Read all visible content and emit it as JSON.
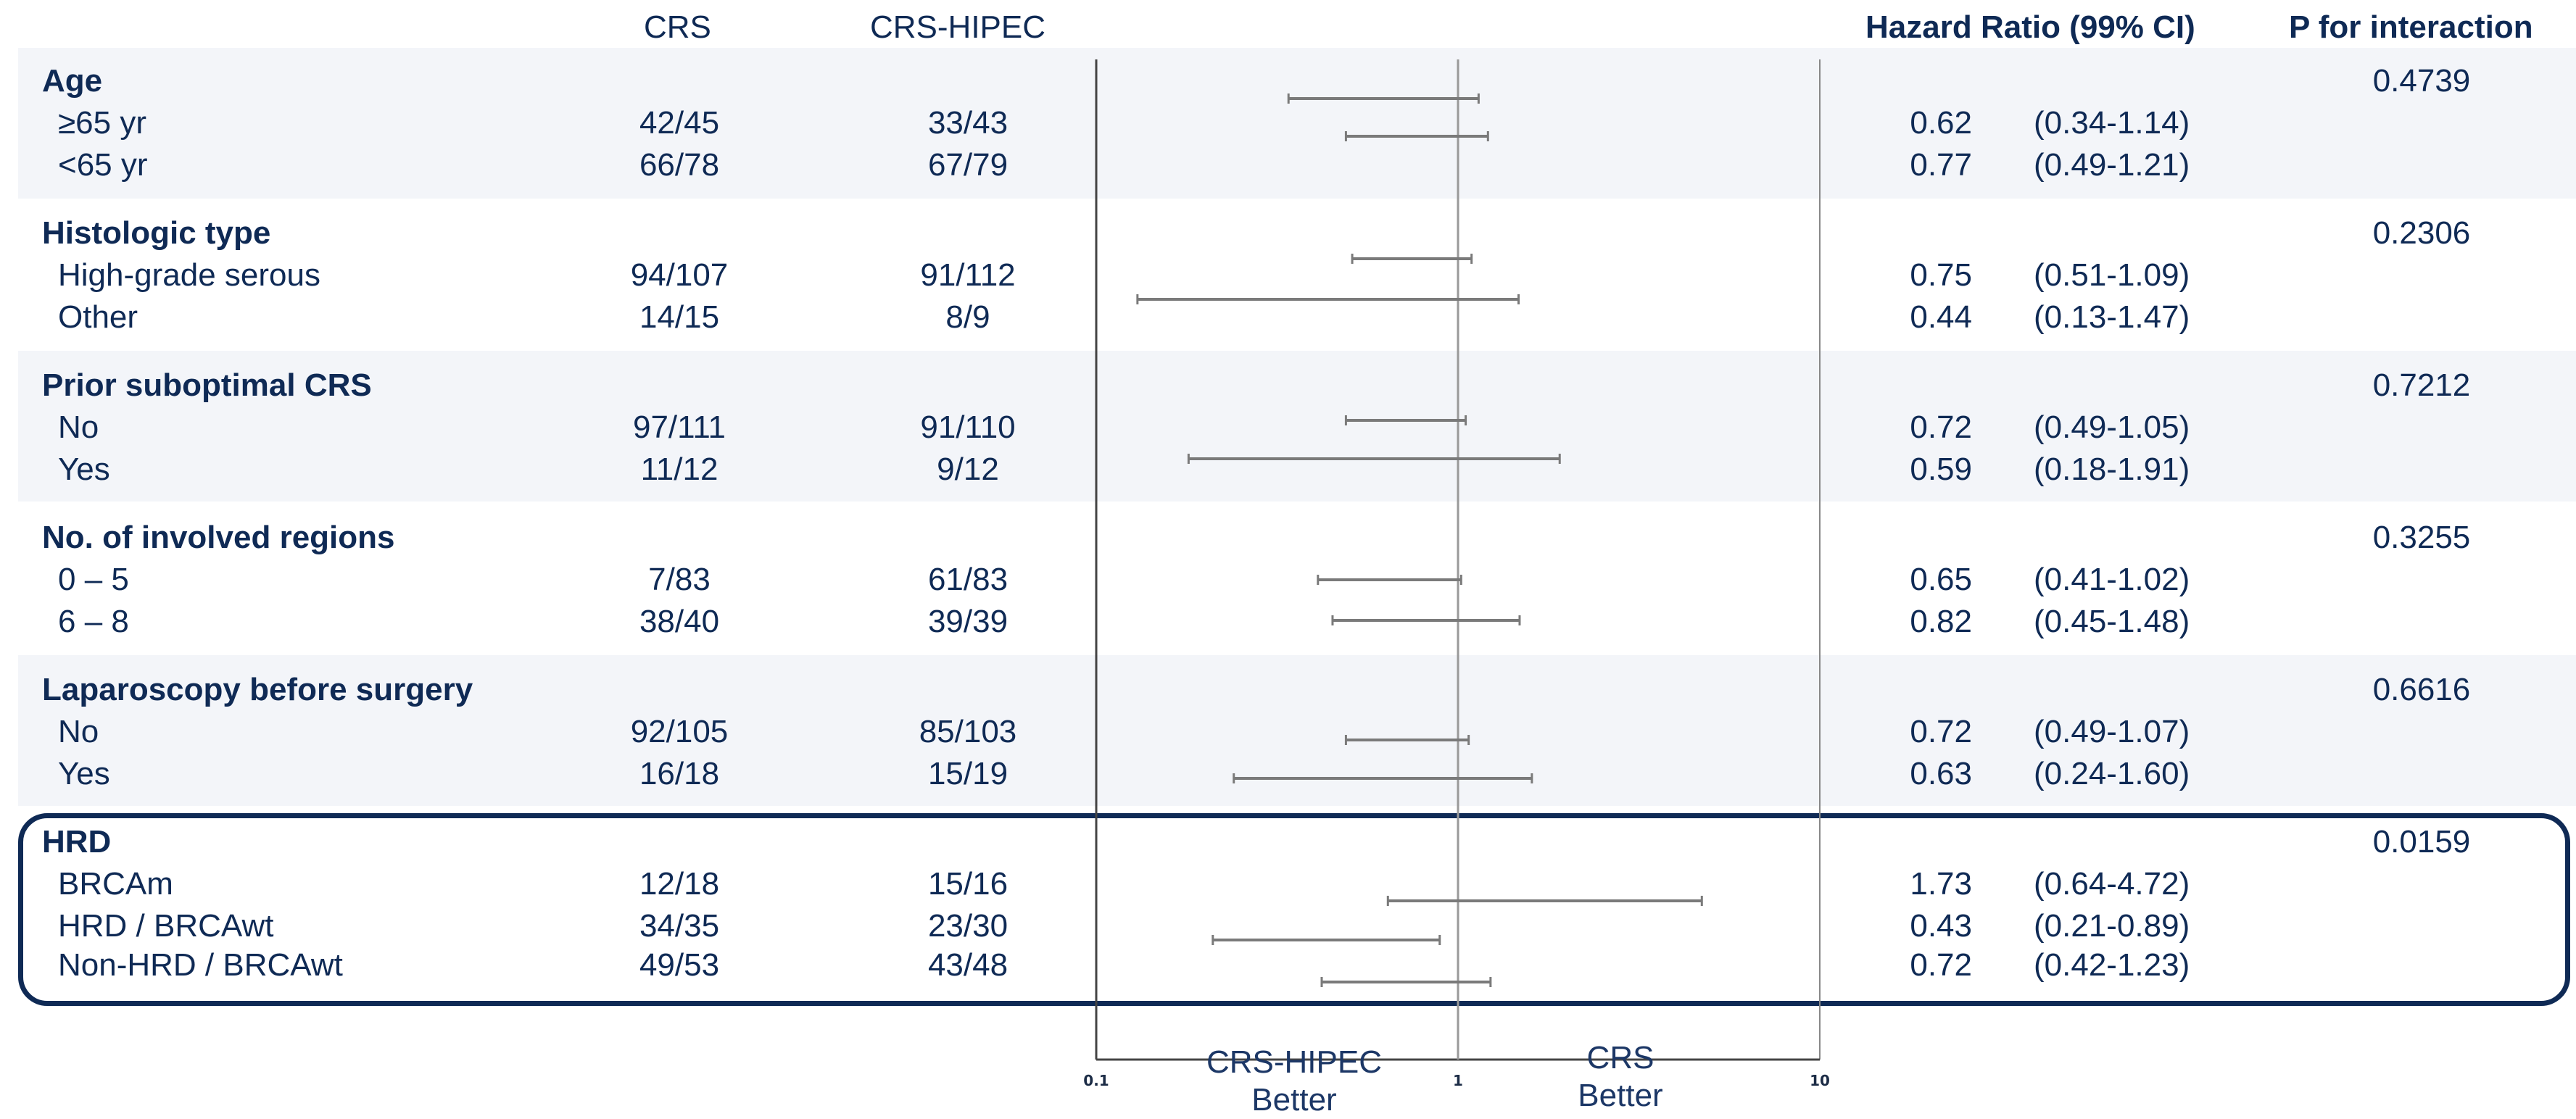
{
  "headers": {
    "crs": "CRS",
    "crs_hipec": "CRS-HIPEC",
    "hazard_ratio": "Hazard Ratio (99% CI)",
    "p_interaction": "P for interaction"
  },
  "axis": {
    "left_label_1": "CRS-HIPEC",
    "left_label_2": "Better",
    "right_label_1": "CRS",
    "right_label_2": "Better",
    "ticks": [
      "0.1",
      "1",
      "10"
    ]
  },
  "groups": [
    {
      "title": "Age",
      "p": "0.4739",
      "rows": [
        {
          "label": "≥65 yr",
          "crs": "42/45",
          "hipec": "33/43",
          "hr": "0.62",
          "ci": "(0.34-1.14)"
        },
        {
          "label": "<65 yr",
          "crs": "66/78",
          "hipec": "67/79",
          "hr": "0.77",
          "ci": "(0.49-1.21)"
        }
      ]
    },
    {
      "title": "Histologic type",
      "p": "0.2306",
      "rows": [
        {
          "label": "High-grade serous",
          "crs": "94/107",
          "hipec": "91/112",
          "hr": "0.75",
          "ci": "(0.51-1.09)"
        },
        {
          "label": "Other",
          "crs": "14/15",
          "hipec": "8/9",
          "hr": "0.44",
          "ci": "(0.13-1.47)"
        }
      ]
    },
    {
      "title": "Prior suboptimal CRS",
      "p": "0.7212",
      "rows": [
        {
          "label": "No",
          "crs": "97/111",
          "hipec": "91/110",
          "hr": "0.72",
          "ci": "(0.49-1.05)"
        },
        {
          "label": "Yes",
          "crs": "11/12",
          "hipec": "9/12",
          "hr": "0.59",
          "ci": "(0.18-1.91)"
        }
      ]
    },
    {
      "title": "No. of involved regions",
      "p": "0.3255",
      "rows": [
        {
          "label": "0 – 5",
          "crs": "7/83",
          "hipec": "61/83",
          "hr": "0.65",
          "ci": "(0.41-1.02)"
        },
        {
          "label": "6 – 8",
          "crs": "38/40",
          "hipec": "39/39",
          "hr": "0.82",
          "ci": "(0.45-1.48)"
        }
      ]
    },
    {
      "title": "Laparoscopy before surgery",
      "p": "0.6616",
      "rows": [
        {
          "label": "No",
          "crs": "92/105",
          "hipec": "85/103",
          "hr": "0.72",
          "ci": "(0.49-1.07)"
        },
        {
          "label": "Yes",
          "crs": "16/18",
          "hipec": "15/19",
          "hr": "0.63",
          "ci": "(0.24-1.60)"
        }
      ]
    },
    {
      "title": "HRD",
      "p": "0.0159",
      "rows": [
        {
          "label": "BRCAm",
          "crs": "12/18",
          "hipec": "15/16",
          "hr": "1.73",
          "ci": "(0.64-4.72)"
        },
        {
          "label": "HRD / BRCAwt",
          "crs": "34/35",
          "hipec": "23/30",
          "hr": "0.43",
          "ci": "(0.21-0.89)"
        },
        {
          "label": "Non-HRD / BRCAwt",
          "crs": "49/53",
          "hipec": "43/48",
          "hr": "0.72",
          "ci": "(0.42-1.23)"
        }
      ]
    }
  ],
  "colors": {
    "text": "#0f2a55",
    "band": "#f3f5f9",
    "line": "#7a7a7a",
    "highlight_border": "#0f2a55"
  },
  "chart_data": {
    "type": "forest",
    "x_scale": "log",
    "xlim": [
      0.1,
      10
    ],
    "reference_line": 1,
    "series": [
      {
        "name": "≥65 yr",
        "hr": 0.62,
        "lo": 0.34,
        "hi": 1.14
      },
      {
        "name": "<65 yr",
        "hr": 0.77,
        "lo": 0.49,
        "hi": 1.21
      },
      {
        "name": "High-grade serous",
        "hr": 0.75,
        "lo": 0.51,
        "hi": 1.09
      },
      {
        "name": "Other",
        "hr": 0.44,
        "lo": 0.13,
        "hi": 1.47
      },
      {
        "name": "No",
        "hr": 0.72,
        "lo": 0.49,
        "hi": 1.05
      },
      {
        "name": "Yes",
        "hr": 0.59,
        "lo": 0.18,
        "hi": 1.91
      },
      {
        "name": "0 – 5",
        "hr": 0.65,
        "lo": 0.41,
        "hi": 1.02
      },
      {
        "name": "6 – 8",
        "hr": 0.82,
        "lo": 0.45,
        "hi": 1.48
      },
      {
        "name": "No",
        "hr": 0.72,
        "lo": 0.49,
        "hi": 1.07
      },
      {
        "name": "Yes",
        "hr": 0.63,
        "lo": 0.24,
        "hi": 1.6
      },
      {
        "name": "BRCAm",
        "hr": 1.73,
        "lo": 0.64,
        "hi": 4.72
      },
      {
        "name": "HRD / BRCAwt",
        "hr": 0.43,
        "lo": 0.21,
        "hi": 0.89
      },
      {
        "name": "Non-HRD / BRCAwt",
        "hr": 0.72,
        "lo": 0.42,
        "hi": 1.23
      }
    ]
  }
}
